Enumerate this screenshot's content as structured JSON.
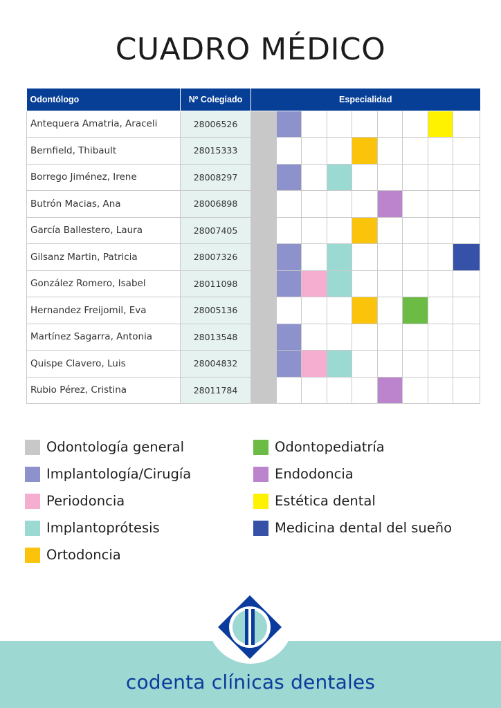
{
  "title": "CUADRO MÉDICO",
  "table": {
    "headers": {
      "name": "Odontólogo",
      "number": "Nº Colegiado",
      "specialty": "Especialidad"
    },
    "rows": [
      {
        "name": "Antequera Amatria, Araceli",
        "number": "28006526",
        "cells": [
          "general",
          "implantologia",
          "",
          "",
          "",
          "",
          "",
          "estetica",
          ""
        ]
      },
      {
        "name": "Bernfield, Thibault",
        "number": "28015333",
        "cells": [
          "general",
          "",
          "",
          "",
          "ortodoncia",
          "",
          "",
          "",
          ""
        ]
      },
      {
        "name": "Borrego Jiménez, Irene",
        "number": "28008297",
        "cells": [
          "general",
          "implantologia",
          "",
          "implantoprotesis",
          "",
          "",
          "",
          "",
          ""
        ]
      },
      {
        "name": "Butrón Macias, Ana",
        "number": "28006898",
        "cells": [
          "general",
          "",
          "",
          "",
          "",
          "endodoncia",
          "",
          "",
          ""
        ]
      },
      {
        "name": "García Ballestero, Laura",
        "number": "28007405",
        "cells": [
          "general",
          "",
          "",
          "",
          "ortodoncia",
          "",
          "",
          "",
          ""
        ]
      },
      {
        "name": "Gilsanz Martin, Patricia",
        "number": "28007326",
        "cells": [
          "general",
          "implantologia",
          "",
          "implantoprotesis",
          "",
          "",
          "",
          "",
          "sueno"
        ]
      },
      {
        "name": "González Romero, Isabel",
        "number": "28011098",
        "cells": [
          "general",
          "implantologia",
          "periodoncia",
          "implantoprotesis",
          "",
          "",
          "",
          "",
          ""
        ]
      },
      {
        "name": "Hernandez Freijomil, Eva",
        "number": "28005136",
        "cells": [
          "general",
          "",
          "",
          "",
          "ortodoncia",
          "",
          "odontopediatria",
          "",
          ""
        ]
      },
      {
        "name": "Martínez Sagarra, Antonia",
        "number": "28013548",
        "cells": [
          "general",
          "implantologia",
          "",
          "",
          "",
          "",
          "",
          "",
          ""
        ]
      },
      {
        "name": "Quispe Clavero, Luis",
        "number": "28004832",
        "cells": [
          "general",
          "implantologia",
          "periodoncia",
          "implantoprotesis",
          "",
          "",
          "",
          "",
          ""
        ]
      },
      {
        "name": "Rubio Pérez, Cristina",
        "number": "28011784",
        "cells": [
          "general",
          "",
          "",
          "",
          "",
          "endodoncia",
          "",
          "",
          ""
        ]
      }
    ]
  },
  "colors": {
    "general": "#c8c8c8",
    "implantologia": "#8e92cc",
    "periodoncia": "#f5aed0",
    "implantoprotesis": "#9bdad3",
    "ortodoncia": "#fcc30b",
    "odontopediatria": "#6cbb44",
    "endodoncia": "#bc84cc",
    "estetica": "#fff200",
    "sueno": "#3552a8",
    "header_bg": "#073e96",
    "number_bg": "#e6f2ef",
    "footer_band": "#9dd8d2",
    "brand_text": "#0b3b9c"
  },
  "legend": {
    "left": [
      {
        "key": "general",
        "label": "Odontología general"
      },
      {
        "key": "implantologia",
        "label": "Implantología/Cirugía"
      },
      {
        "key": "periodoncia",
        "label": "Periodoncia"
      },
      {
        "key": "implantoprotesis",
        "label": "Implantoprótesis"
      },
      {
        "key": "ortodoncia",
        "label": "Ortodoncia"
      }
    ],
    "right": [
      {
        "key": "odontopediatria",
        "label": "Odontopediatría"
      },
      {
        "key": "endodoncia",
        "label": "Endodoncia"
      },
      {
        "key": "estetica",
        "label": "Estética dental"
      },
      {
        "key": "sueno",
        "label": "Medicina dental del sueño"
      }
    ]
  },
  "footer": {
    "brand": "codenta clínicas dentales",
    "logo_icon": "codenta-logo-icon"
  }
}
